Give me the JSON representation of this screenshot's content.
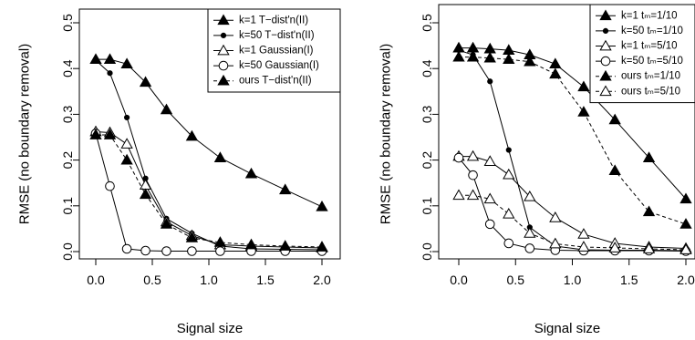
{
  "charts": [
    {
      "type": "line",
      "xlabel": "Signal size",
      "ylabel": "RMSE (no boundary removal)",
      "xlim": [
        0,
        2
      ],
      "ylim": [
        0,
        0.55
      ],
      "x_ticks": [
        "0.0",
        "0.5",
        "1.0",
        "1.5",
        "2.0"
      ],
      "y_ticks": [
        "0.0",
        "0.1",
        "0.2",
        "0.3",
        "0.4",
        "0.5"
      ],
      "legend_position": "top-right",
      "series": [
        {
          "name": "k=1   T−dist'n(II)",
          "marker": "triangle-filled",
          "dashed": false,
          "x": [
            0,
            0.125,
            0.275,
            0.44,
            0.625,
            0.85,
            1.1,
            1.375,
            1.675,
            2.0
          ],
          "y": [
            0.42,
            0.42,
            0.41,
            0.37,
            0.31,
            0.252,
            0.205,
            0.17,
            0.135,
            0.098
          ]
        },
        {
          "name": "k=50  T−dist'n(II)",
          "marker": "dot",
          "dashed": false,
          "x": [
            0,
            0.125,
            0.275,
            0.44,
            0.625,
            0.85,
            1.1,
            1.375,
            1.675,
            2.0
          ],
          "y": [
            0.418,
            0.39,
            0.293,
            0.16,
            0.072,
            0.04,
            0.012,
            0.006,
            0.005,
            0.004
          ]
        },
        {
          "name": "k=1   Gaussian(I)",
          "marker": "triangle-open",
          "dashed": false,
          "x": [
            0,
            0.125,
            0.275,
            0.44,
            0.625,
            0.85,
            1.1,
            1.375,
            1.675,
            2.0
          ],
          "y": [
            0.262,
            0.26,
            0.235,
            0.145,
            0.065,
            0.035,
            0.015,
            0.012,
            0.01,
            0.008
          ]
        },
        {
          "name": "k=50  Gaussian(I)",
          "marker": "circle-open",
          "dashed": false,
          "x": [
            0,
            0.125,
            0.275,
            0.44,
            0.625,
            0.85,
            1.1,
            1.375,
            1.675,
            2.0
          ],
          "y": [
            0.258,
            0.143,
            0.006,
            0.002,
            0.001,
            0.001,
            0.001,
            0.001,
            0.001,
            0.001
          ]
        },
        {
          "name": "ours  T−dist'n(II)",
          "marker": "triangle-filled",
          "dashed": true,
          "x": [
            0,
            0.125,
            0.275,
            0.44,
            0.625,
            0.85,
            1.1,
            1.375,
            1.675,
            2.0
          ],
          "y": [
            0.255,
            0.255,
            0.2,
            0.125,
            0.06,
            0.03,
            0.02,
            0.015,
            0.012,
            0.01
          ]
        }
      ]
    },
    {
      "type": "line",
      "xlabel": "Signal size",
      "ylabel": "RMSE (no boundary removal)",
      "xlim": [
        0,
        2
      ],
      "ylim": [
        0,
        0.55
      ],
      "x_ticks": [
        "0.0",
        "0.5",
        "1.0",
        "1.5",
        "2.0"
      ],
      "y_ticks": [
        "0.0",
        "0.1",
        "0.2",
        "0.3",
        "0.4",
        "0.5"
      ],
      "legend_position": "top-right",
      "series": [
        {
          "name": "k=1   tₘ=1/10",
          "marker": "triangle-filled",
          "dashed": false,
          "x": [
            0,
            0.125,
            0.275,
            0.44,
            0.625,
            0.85,
            1.1,
            1.375,
            1.675,
            2.0
          ],
          "y": [
            0.445,
            0.445,
            0.443,
            0.44,
            0.43,
            0.41,
            0.36,
            0.288,
            0.205,
            0.115
          ]
        },
        {
          "name": "k=50  tₘ=1/10",
          "marker": "dot",
          "dashed": false,
          "x": [
            0,
            0.125,
            0.275,
            0.44,
            0.625,
            0.85,
            1.1,
            1.375,
            1.675,
            2.0
          ],
          "y": [
            0.44,
            0.43,
            0.372,
            0.222,
            0.053,
            0.012,
            0.004,
            0.003,
            0.003,
            0.002
          ]
        },
        {
          "name": "k=1   tₘ=5/10",
          "marker": "triangle-open",
          "dashed": false,
          "x": [
            0,
            0.125,
            0.275,
            0.44,
            0.625,
            0.85,
            1.1,
            1.375,
            1.675,
            2.0
          ],
          "y": [
            0.208,
            0.208,
            0.197,
            0.168,
            0.12,
            0.074,
            0.038,
            0.018,
            0.01,
            0.007
          ]
        },
        {
          "name": "k=50  tₘ=5/10",
          "marker": "circle-open",
          "dashed": false,
          "x": [
            0,
            0.125,
            0.275,
            0.44,
            0.625,
            0.85,
            1.1,
            1.375,
            1.675,
            2.0
          ],
          "y": [
            0.205,
            0.167,
            0.06,
            0.018,
            0.007,
            0.003,
            0.002,
            0.002,
            0.002,
            0.001
          ]
        },
        {
          "name": "ours  tₘ=1/10",
          "marker": "triangle-filled",
          "dashed": true,
          "x": [
            0,
            0.125,
            0.275,
            0.44,
            0.625,
            0.85,
            1.1,
            1.375,
            1.675,
            2.0
          ],
          "y": [
            0.425,
            0.425,
            0.423,
            0.42,
            0.415,
            0.388,
            0.305,
            0.177,
            0.087,
            0.06
          ]
        },
        {
          "name": "ours  tₘ=5/10",
          "marker": "triangle-open",
          "dashed": true,
          "x": [
            0,
            0.125,
            0.275,
            0.44,
            0.625,
            0.85,
            1.1,
            1.375,
            1.675,
            2.0
          ],
          "y": [
            0.123,
            0.123,
            0.115,
            0.082,
            0.04,
            0.017,
            0.01,
            0.008,
            0.006,
            0.004
          ]
        }
      ]
    }
  ]
}
